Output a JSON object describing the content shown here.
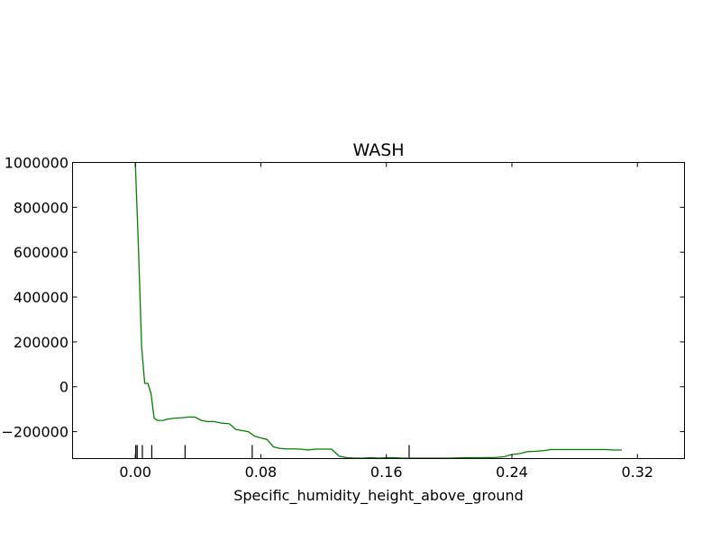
{
  "chart_data": {
    "type": "line",
    "title": "WASH",
    "xlabel": "Specific_humidity_height_above_ground",
    "ylabel": "",
    "xlim": [
      -0.04,
      0.35
    ],
    "ylim": [
      -320000,
      1000000
    ],
    "xticks": [
      0.0,
      0.08,
      0.16,
      0.24,
      0.32
    ],
    "xtick_labels": [
      "0.00",
      "0.08",
      "0.16",
      "0.24",
      "0.32"
    ],
    "yticks": [
      1000000,
      800000,
      600000,
      400000,
      200000,
      0,
      -200000
    ],
    "ytick_labels": [
      "1000000",
      "800000",
      "600000",
      "400000",
      "200000",
      "0",
      "−200000"
    ],
    "grid": false,
    "line_color": "#008000",
    "series": [
      {
        "x": [
          0.0,
          0.002,
          0.004,
          0.006,
          0.008,
          0.01,
          0.012,
          0.014,
          0.016,
          0.018,
          0.02,
          0.025,
          0.03,
          0.034,
          0.038,
          0.042,
          0.046,
          0.05,
          0.055,
          0.06,
          0.064,
          0.068,
          0.072,
          0.076,
          0.08,
          0.084,
          0.088,
          0.092,
          0.096,
          0.1,
          0.105,
          0.11,
          0.115,
          0.12,
          0.125,
          0.13,
          0.135,
          0.14,
          0.145,
          0.15,
          0.155,
          0.16,
          0.165,
          0.17,
          0.175,
          0.18,
          0.19,
          0.2,
          0.21,
          0.22,
          0.23,
          0.235,
          0.24,
          0.245,
          0.25,
          0.255,
          0.26,
          0.265,
          0.27,
          0.28,
          0.29,
          0.3,
          0.305,
          0.31
        ],
        "y": [
          1000000,
          620000,
          180000,
          15000,
          15000,
          -30000,
          -140000,
          -150000,
          -150000,
          -150000,
          -145000,
          -140000,
          -138000,
          -135000,
          -135000,
          -150000,
          -155000,
          -155000,
          -162000,
          -165000,
          -190000,
          -195000,
          -200000,
          -220000,
          -228000,
          -235000,
          -268000,
          -275000,
          -277000,
          -277000,
          -278000,
          -282000,
          -278000,
          -278000,
          -278000,
          -310000,
          -316000,
          -318000,
          -318000,
          -316000,
          -318000,
          -316000,
          -316000,
          -318000,
          -318000,
          -318000,
          -318000,
          -318000,
          -316000,
          -316000,
          -315000,
          -312000,
          -302000,
          -298000,
          -289000,
          -288000,
          -285000,
          -280000,
          -280000,
          -280000,
          -280000,
          -280000,
          -282000,
          -282000
        ]
      }
    ],
    "rug_x": [
      0.0003,
      0.0012,
      0.0045,
      0.0105,
      0.0317,
      0.0745,
      0.1745
    ]
  }
}
